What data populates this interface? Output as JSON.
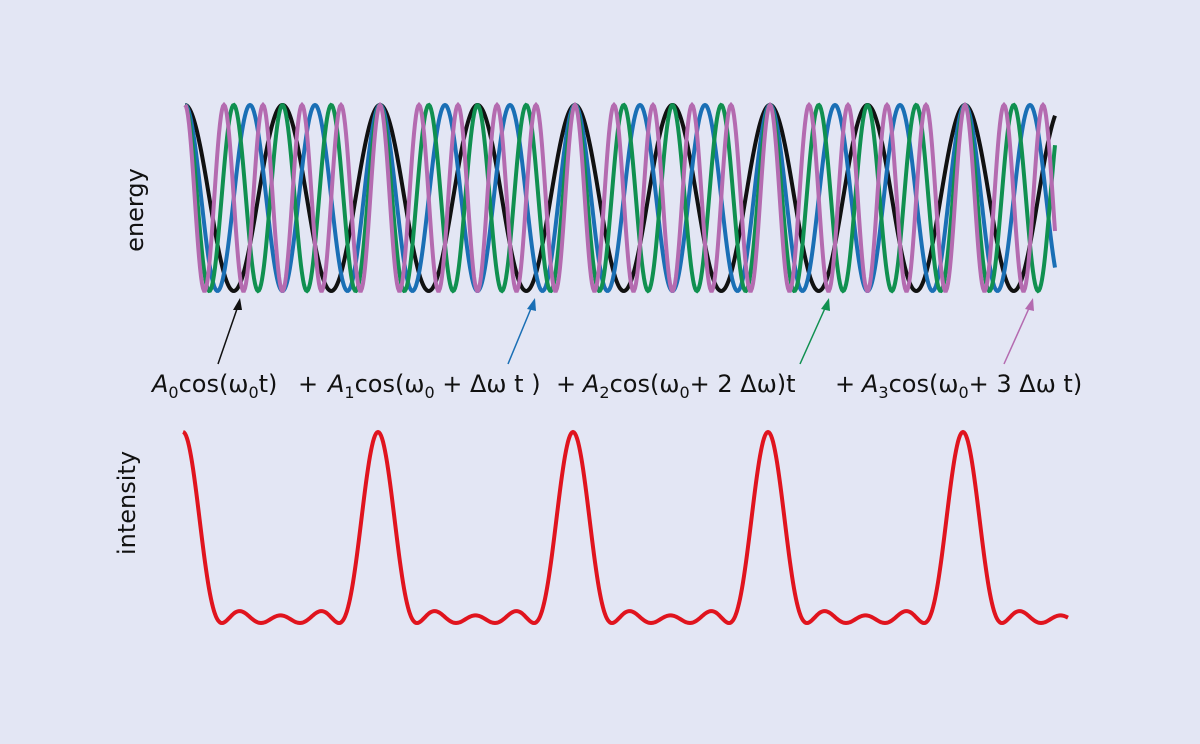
{
  "labels": {
    "energy": "energy",
    "intensity": "intensity"
  },
  "formula": {
    "terms": [
      {
        "parts": [
          "A",
          "0",
          "cos(ω",
          "0",
          "t)"
        ]
      },
      {
        "parts": [
          "A",
          "1",
          "cos(ω",
          "0",
          " + Δω t )"
        ]
      },
      {
        "parts": [
          "A",
          "2",
          "cos(ω",
          "0",
          "+ 2 Δω)t"
        ]
      },
      {
        "parts": [
          "A",
          "3",
          "cos(ω",
          "0",
          "+ 3 Δω t)"
        ]
      }
    ],
    "operators": [
      "+",
      "+",
      "+"
    ]
  }
}
